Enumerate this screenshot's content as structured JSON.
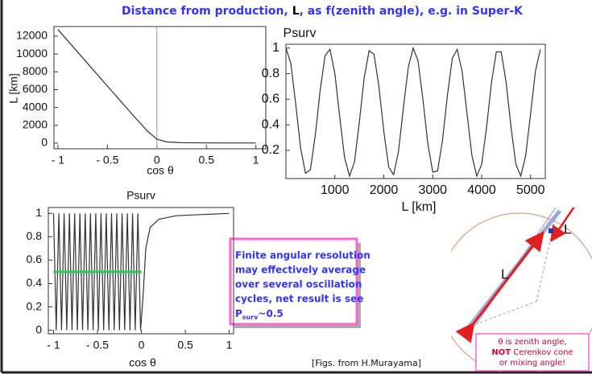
{
  "title": [
    "Distance from production, ",
    "L",
    ", as f(zenith angle), e.g. in Super-K"
  ],
  "chart_data": [
    {
      "type": "line",
      "x_label": "cos θ",
      "y_label": "L [km]",
      "x": [
        -1,
        -0.75,
        -0.5,
        -0.25,
        -0.1,
        0,
        0.1,
        0.25,
        0.5,
        1
      ],
      "series": [
        {
          "color": "#333333",
          "values": [
            12750,
            9580,
            6400,
            3250,
            1410,
            440,
            140,
            60,
            30,
            15
          ]
        }
      ],
      "xlim": [
        -1.04,
        1.1
      ],
      "ylim": [
        -630,
        13080
      ],
      "xticks": [
        {
          "value": -1,
          "label": "- 1"
        },
        {
          "value": -0.5,
          "label": "- 0.5"
        },
        0,
        0.5,
        1
      ],
      "yticks": [
        0,
        2000,
        4000,
        6000,
        8000,
        10000,
        12000
      ]
    },
    {
      "type": "line",
      "title": "Psurv",
      "x_label": "L [km]",
      "x": [
        0,
        100,
        200,
        300,
        400,
        500,
        600,
        700,
        800,
        900,
        1000,
        1100,
        1200,
        1300,
        1400,
        1500,
        1600,
        1700,
        1800,
        1900,
        2000,
        2100,
        2200,
        2300,
        2400,
        2500,
        2600,
        2700,
        2800,
        2900,
        3000,
        3100,
        3200,
        3300,
        3400,
        3500,
        3600,
        3700,
        3800,
        3900,
        4000,
        4100,
        4200,
        4300,
        4400,
        4500,
        4600,
        4700,
        4800,
        4900,
        5000,
        5100,
        5200
      ],
      "series": [
        {
          "color": "#333333",
          "values": [
            1,
            0.88,
            0.56,
            0.22,
            0.02,
            0.05,
            0.32,
            0.67,
            0.94,
            0.99,
            0.8,
            0.46,
            0.14,
            0,
            0.11,
            0.42,
            0.77,
            0.98,
            0.95,
            0.7,
            0.35,
            0.07,
            0.01,
            0.19,
            0.53,
            0.85,
            1,
            0.9,
            0.6,
            0.25,
            0.03,
            0.04,
            0.28,
            0.63,
            0.92,
            0.99,
            0.82,
            0.49,
            0.16,
            0,
            0.09,
            0.38,
            0.73,
            0.97,
            0.97,
            0.73,
            0.38,
            0.09,
            0,
            0.16,
            0.49,
            0.82,
            0.99
          ]
        }
      ],
      "xlim": [
        0,
        5300
      ],
      "ylim": [
        -0.02,
        1.03
      ],
      "xticks": [
        1000,
        2000,
        3000,
        4000,
        5000
      ],
      "yticks": [
        0.2,
        0.4,
        0.6,
        0.8,
        1
      ]
    },
    {
      "type": "line",
      "title": "Psurv",
      "x_label": "cos θ",
      "x": [
        -1,
        -0.97,
        -0.94,
        -0.91,
        -0.88,
        -0.85,
        -0.82,
        -0.79,
        -0.76,
        -0.73,
        -0.7,
        -0.67,
        -0.64,
        -0.61,
        -0.58,
        -0.55,
        -0.52,
        -0.49,
        -0.46,
        -0.43,
        -0.4,
        -0.37,
        -0.34,
        -0.31,
        -0.28,
        -0.25,
        -0.22,
        -0.19,
        -0.16,
        -0.13,
        -0.1,
        -0.07,
        -0.04,
        -0.01,
        0.02,
        0.05,
        0.1,
        0.2,
        0.4,
        0.7,
        1
      ],
      "series": [
        {
          "color": "#333333",
          "values": [
            1,
            0,
            1,
            0,
            1,
            0,
            1,
            0,
            1,
            0,
            1,
            0,
            1,
            0,
            1,
            0,
            1,
            0,
            1,
            0,
            1,
            0,
            1,
            0,
            1,
            0,
            1,
            0,
            1,
            0,
            1,
            0,
            1,
            0,
            0.3,
            0.7,
            0.88,
            0.95,
            0.98,
            0.99,
            1
          ]
        },
        {
          "color": "#22cc55",
          "x": [
            -1,
            0
          ],
          "values": [
            0.5,
            0.5
          ]
        }
      ],
      "xlim": [
        -1.06,
        1.05
      ],
      "ylim": [
        -0.03,
        1.05
      ],
      "xticks": [
        {
          "value": -1,
          "label": "- 1"
        },
        {
          "value": -0.5,
          "label": "- 0.5"
        },
        0,
        0.5,
        1
      ],
      "yticks": [
        0,
        0.2,
        0.4,
        0.6,
        0.8,
        1
      ]
    }
  ],
  "callout": {
    "lines": [
      "Finite angular resolution",
      "may effectively average",
      "over several oscillation",
      "cycles, net result is see"
    ],
    "last": [
      "P",
      "surv",
      "~0.5"
    ]
  },
  "caption": "[Figs. from H.Murayama]",
  "diagram": {
    "label_top": "L",
    "label_main": "L",
    "note": [
      "θ is zenith angle,",
      "NOT",
      " Cerenkov cone",
      "or mixing angle!"
    ]
  }
}
